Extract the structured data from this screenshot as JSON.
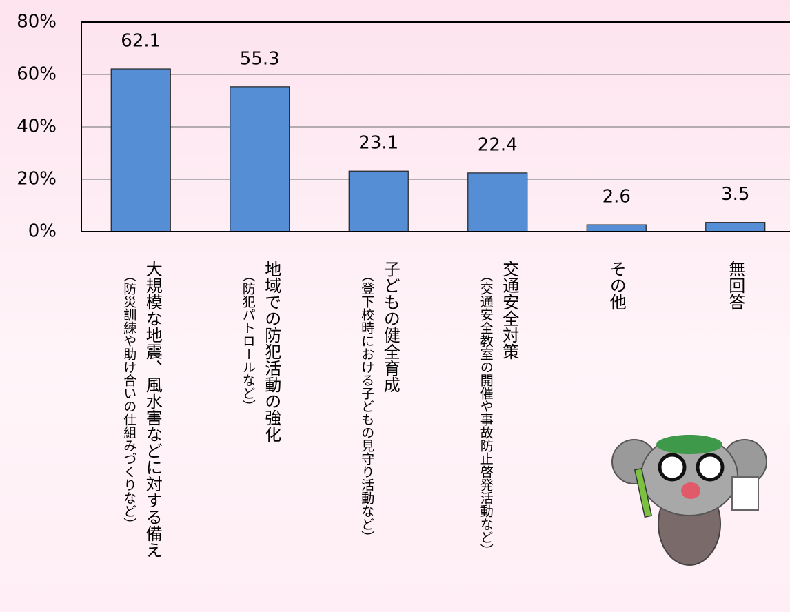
{
  "chart_data": {
    "type": "bar",
    "categories": [
      "大規模な地震、風水害などに対する備え",
      "地域での防犯活動の強化",
      "子どもの健全育成",
      "交通安全対策",
      "その他",
      "無回答"
    ],
    "category_notes": [
      "（防災訓練や助け合いの仕組みづくりなど）",
      "（防犯パトロールなど）",
      "（登下校時における子どもの見守り活動など）",
      "（交通安全教室の開催や事故防止啓発活動など）",
      null,
      null
    ],
    "values": [
      62.1,
      55.3,
      23.1,
      22.4,
      2.6,
      3.5
    ],
    "color": "#558ed5",
    "ylim": [
      0,
      80
    ],
    "yticks": [
      {
        "value": 0,
        "label": "0%"
      },
      {
        "value": 20,
        "label": "20%"
      },
      {
        "value": 40,
        "label": "40%"
      },
      {
        "value": 60,
        "label": "60%"
      },
      {
        "value": 80,
        "label": "80%"
      }
    ],
    "grid": true
  }
}
